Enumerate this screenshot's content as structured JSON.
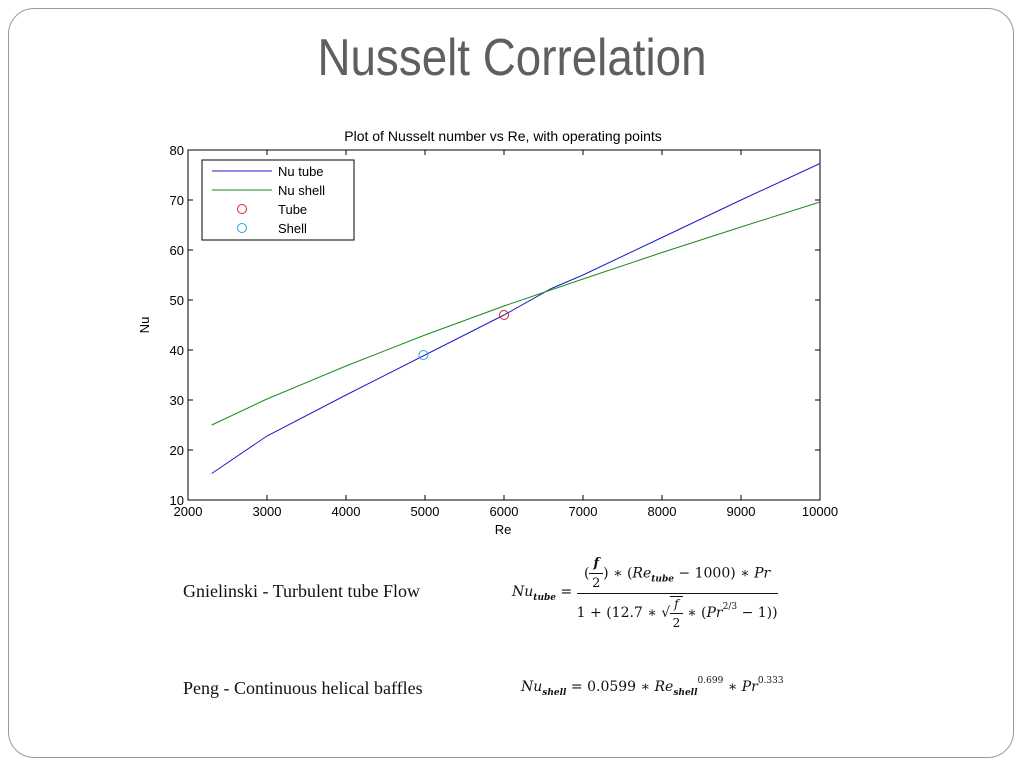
{
  "slide_title": "Nusselt Correlation",
  "captions": {
    "tube": "Gnielinski - Turbulent tube Flow",
    "shell": "Peng - Continuous helical baffles"
  },
  "formulas": {
    "tube_lhs": "Nu",
    "tube_lhs_sub": "tube",
    "tube_num_pre": "∗ (",
    "tube_num_re": "Re",
    "tube_num_re_sub": "tube",
    "tube_num_post": " − 1000) ∗ ",
    "tube_num_pr": "Pr",
    "tube_den_pre": "1 + (12.7 ∗ ",
    "tube_den_post": " ∗ (",
    "tube_den_pr": "Pr",
    "tube_den_exp": "2/3",
    "tube_den_end": " − 1))",
    "f": "f",
    "two": "2",
    "shell_lhs": "Nu",
    "shell_lhs_sub": "shell",
    "shell_eq": " = 0.0599 ∗ ",
    "shell_re": "Re",
    "shell_re_sub": "shell",
    "shell_re_exp": "0.699",
    "shell_mid": " ∗ ",
    "shell_pr": "Pr",
    "shell_pr_exp": "0.333"
  },
  "chart_data": {
    "type": "line",
    "title": "Plot of Nusselt number vs Re, with operating points",
    "xlabel": "Re",
    "ylabel": "Nu",
    "xlim": [
      2000,
      10000
    ],
    "ylim": [
      10,
      80
    ],
    "xticks": [
      2000,
      3000,
      4000,
      5000,
      6000,
      7000,
      8000,
      9000,
      10000
    ],
    "yticks": [
      10,
      20,
      30,
      40,
      50,
      60,
      70,
      80
    ],
    "grid": false,
    "legend_position": "top-left",
    "series": [
      {
        "name": "Nu tube",
        "color": "#1c1cc8",
        "x": [
          2300,
          3000,
          4000,
          5000,
          6000,
          6600,
          7000,
          8000,
          9000,
          10000
        ],
        "y": [
          15.3,
          22.8,
          31.0,
          39.0,
          47.0,
          52.3,
          55.0,
          62.5,
          70.0,
          77.3
        ]
      },
      {
        "name": "Nu shell",
        "color": "#1a8a1a",
        "x": [
          2300,
          3000,
          4000,
          5000,
          6000,
          7000,
          8000,
          9000,
          10000
        ],
        "y": [
          25.0,
          30.2,
          36.8,
          43.0,
          48.8,
          54.2,
          59.5,
          64.6,
          69.6
        ]
      }
    ],
    "points": [
      {
        "name": "Tube",
        "color": "#e02020",
        "x": 6000,
        "y": 47
      },
      {
        "name": "Shell",
        "color": "#20a8d8",
        "x": 4980,
        "y": 39
      }
    ]
  }
}
